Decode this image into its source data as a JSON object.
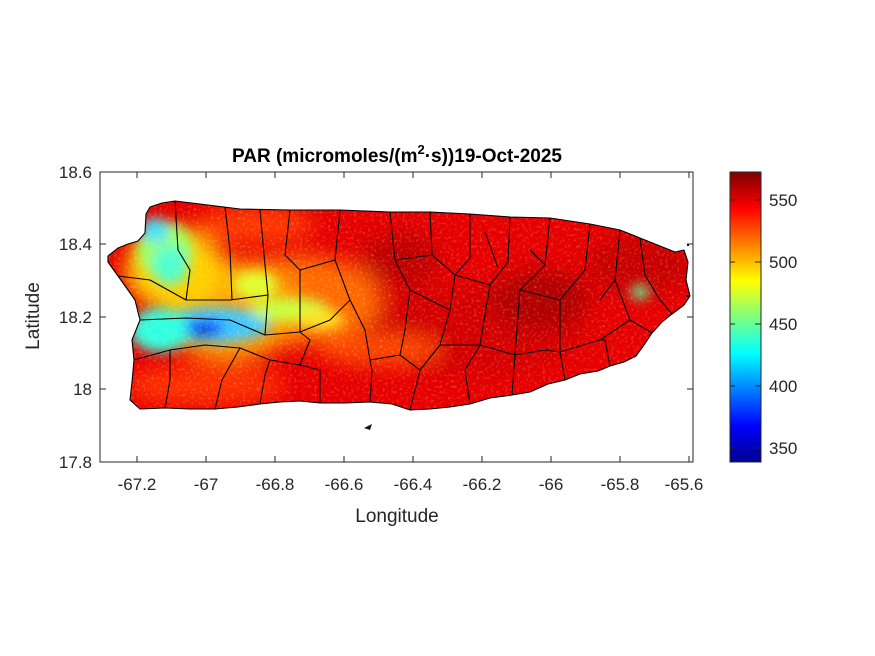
{
  "figure": {
    "title_main": "PAR (micromoles/(m",
    "title_sup": "2",
    "title_rest": "·s))19-Oct-2025",
    "xlabel": "Longitude",
    "ylabel": "Latitude"
  },
  "axes": {
    "xlim": [
      -67.3,
      -65.58
    ],
    "ylim": [
      17.8,
      18.6
    ],
    "xticks": [
      -67.2,
      -67,
      -66.8,
      -66.6,
      -66.4,
      -66.2,
      -66,
      -65.8,
      -65.6
    ],
    "xtick_labels": [
      "-67.2",
      "-67",
      "-66.8",
      "-66.6",
      "-66.4",
      "-66.2",
      "-66",
      "-65.8",
      "-65.6"
    ],
    "yticks": [
      17.8,
      18,
      18.2,
      18.4,
      18.6
    ],
    "ytick_labels": [
      "17.8",
      "18",
      "18.2",
      "18.4",
      "18.6"
    ]
  },
  "colorbar": {
    "colormap": "jet",
    "range": [
      338,
      572
    ],
    "ticks": [
      350,
      400,
      450,
      500,
      550
    ],
    "tick_labels": [
      "350",
      "400",
      "450",
      "500",
      "550"
    ]
  },
  "chart_data": {
    "type": "heatmap",
    "variable": "PAR",
    "units": "micromoles/(m2·s)",
    "date": "19-Oct-2025",
    "region": "Puerto Rico",
    "value_range": [
      338,
      572
    ],
    "typical_east": 550,
    "typical_west_central": 480,
    "min_area_lon_lat": [
      -67.0,
      18.16
    ]
  }
}
